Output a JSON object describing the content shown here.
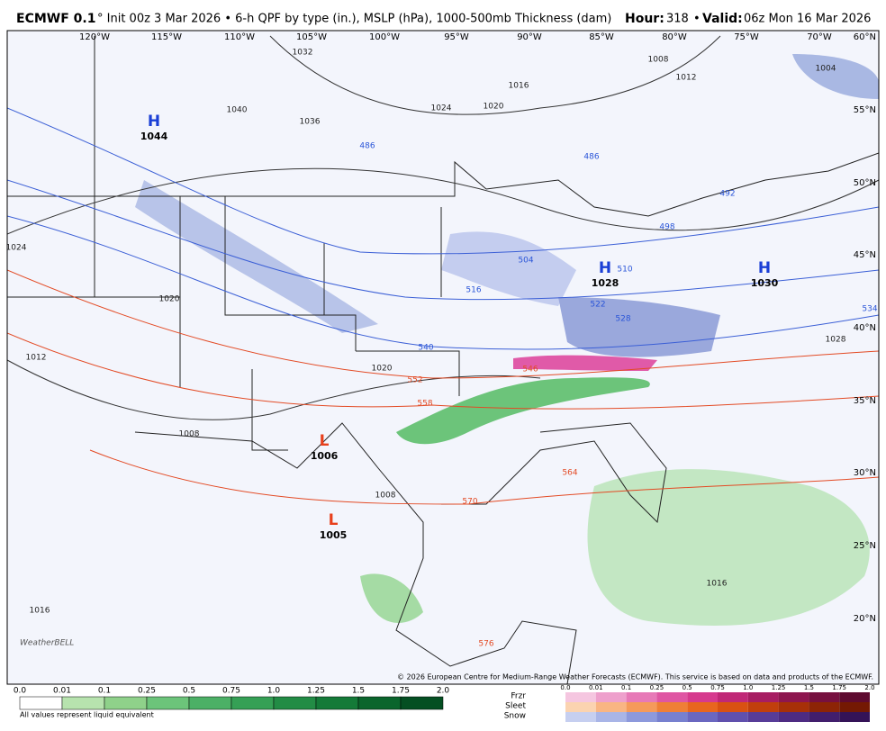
{
  "header": {
    "model": "ECMWF 0.1",
    "description": "° Init 00z 3 Mar 2026 • 6-h QPF by type (in.), MSLP (hPa), 1000-500mb Thickness (dam)",
    "hour_label": "Hour:",
    "hour": "318",
    "separator": "•",
    "valid_label": "Valid:",
    "valid": "06z Mon 16 Mar 2026"
  },
  "map": {
    "longitudes": [
      "120°W",
      "115°W",
      "110°W",
      "105°W",
      "100°W",
      "95°W",
      "90°W",
      "85°W",
      "80°W",
      "75°W",
      "70°W"
    ],
    "latitudes": [
      "60°N",
      "55°N",
      "50°N",
      "45°N",
      "40°N",
      "35°N",
      "30°N",
      "25°N",
      "20°N"
    ],
    "pressure_centers": [
      {
        "letter": "H",
        "value": "1044"
      },
      {
        "letter": "H",
        "value": "1028"
      },
      {
        "letter": "H",
        "value": "1030"
      },
      {
        "letter": "L",
        "value": "1006"
      },
      {
        "letter": "L",
        "value": "1005"
      }
    ],
    "isobar_labels": [
      "1032",
      "1040",
      "1036",
      "1024",
      "1020",
      "1016",
      "1008",
      "1012",
      "1004",
      "1024",
      "1020",
      "1020",
      "1012",
      "1008",
      "1008",
      "1016",
      "1016",
      "1028"
    ],
    "thickness_labels_cold": [
      "486",
      "486",
      "492",
      "498",
      "504",
      "510",
      "516",
      "522",
      "528",
      "534",
      "540"
    ],
    "thickness_labels_warm": [
      "546",
      "552",
      "558",
      "564",
      "570",
      "576"
    ],
    "copyright": "© 2026 European Centre for Medium-Range Weather Forecasts (ECMWF). This service is based on data and products of the ECMWF."
  },
  "legend": {
    "qpf_ticks": [
      "0.0",
      "0.01",
      "0.1",
      "0.25",
      "0.5",
      "0.75",
      "1.0",
      "1.25",
      "1.5",
      "1.75",
      "2.0"
    ],
    "note": "All values represent liquid equivalent",
    "ptype_labels": [
      "Frzr",
      "Sleet",
      "Snow"
    ],
    "ptype_ticks": [
      "0.0",
      "0.01",
      "0.1",
      "0.25",
      "0.5",
      "0.75",
      "1.0",
      "1.25",
      "1.5",
      "1.75",
      "2.0"
    ]
  }
}
